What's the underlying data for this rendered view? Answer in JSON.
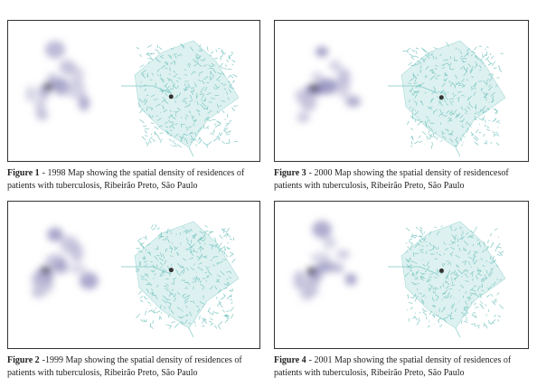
{
  "figures": [
    {
      "label": "Figure 1",
      "text": "- 1998 Map showing the spatial density of residences of patients with tuberculosis, Ribeirão Preto, São Paulo"
    },
    {
      "label": "Figure 3",
      "text": "- 2000 Map showing the spatial density of residencesof patients with tuberculosis, Ribeirão Preto, São Paulo"
    },
    {
      "label": "Figure 2",
      "text": "-1999 Map showing the spatial density of residences of patients with tuberculosis, Ribeirão Preto, São Paulo"
    },
    {
      "label": "Figure 4",
      "text": "- 2001 Map showing the spatial density of residences of patients with tuberculosis, Ribeirão Preto, São Paulo"
    }
  ]
}
